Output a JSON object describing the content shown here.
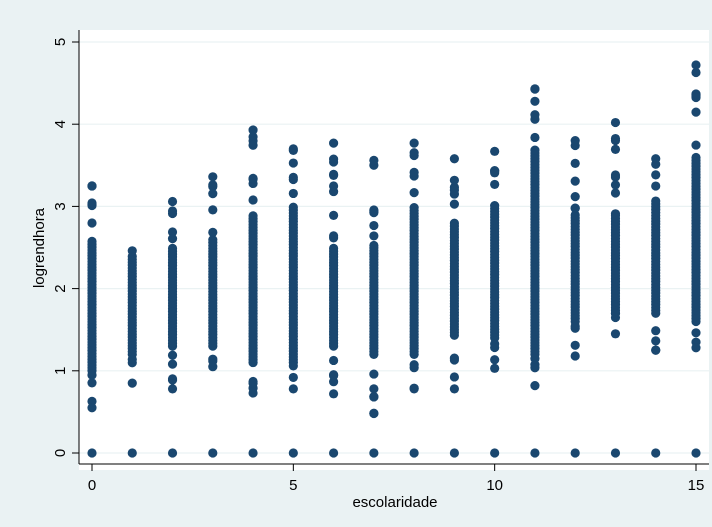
{
  "chart_data": {
    "type": "scatter",
    "title": "",
    "xlabel": "escolaridade",
    "ylabel": "logrendhora",
    "xlim": [
      0,
      15
    ],
    "ylim": [
      0,
      5
    ],
    "xticks": [
      "0",
      "5",
      "10",
      "15"
    ],
    "yticks": [
      "0",
      "1",
      "2",
      "3",
      "4",
      "5"
    ],
    "grid": "horizontal",
    "colors": {
      "marker": "#1a476f",
      "background": "#eaf2f3",
      "plot": "#ffffff",
      "grid": "#eaf2f3"
    },
    "series": [
      {
        "x": [
          0,
          1,
          2,
          3,
          4,
          5,
          6,
          7,
          8,
          9,
          10,
          11,
          12,
          13,
          14,
          15
        ],
        "zero_value": 0,
        "lower": [
          0.55,
          0.85,
          0.78,
          1.05,
          0.73,
          0.78,
          0.72,
          0.48,
          0.78,
          0.78,
          1.03,
          0.82,
          1.18,
          1.45,
          1.25,
          1.28
        ],
        "upper": [
          3.25,
          2.46,
          3.06,
          3.36,
          3.93,
          3.7,
          3.77,
          3.56,
          3.77,
          3.58,
          3.67,
          4.43,
          3.8,
          4.02,
          3.58,
          4.72
        ],
        "core_low": [
          1.0,
          1.2,
          1.3,
          1.3,
          1.1,
          1.1,
          1.3,
          1.2,
          1.2,
          1.5,
          1.4,
          1.2,
          1.6,
          1.7,
          1.7,
          1.6
        ],
        "core_high": [
          2.6,
          2.4,
          2.5,
          2.6,
          2.9,
          3.0,
          2.5,
          2.5,
          3.0,
          2.8,
          3.0,
          3.7,
          2.9,
          2.9,
          3.1,
          3.6
        ]
      }
    ]
  }
}
